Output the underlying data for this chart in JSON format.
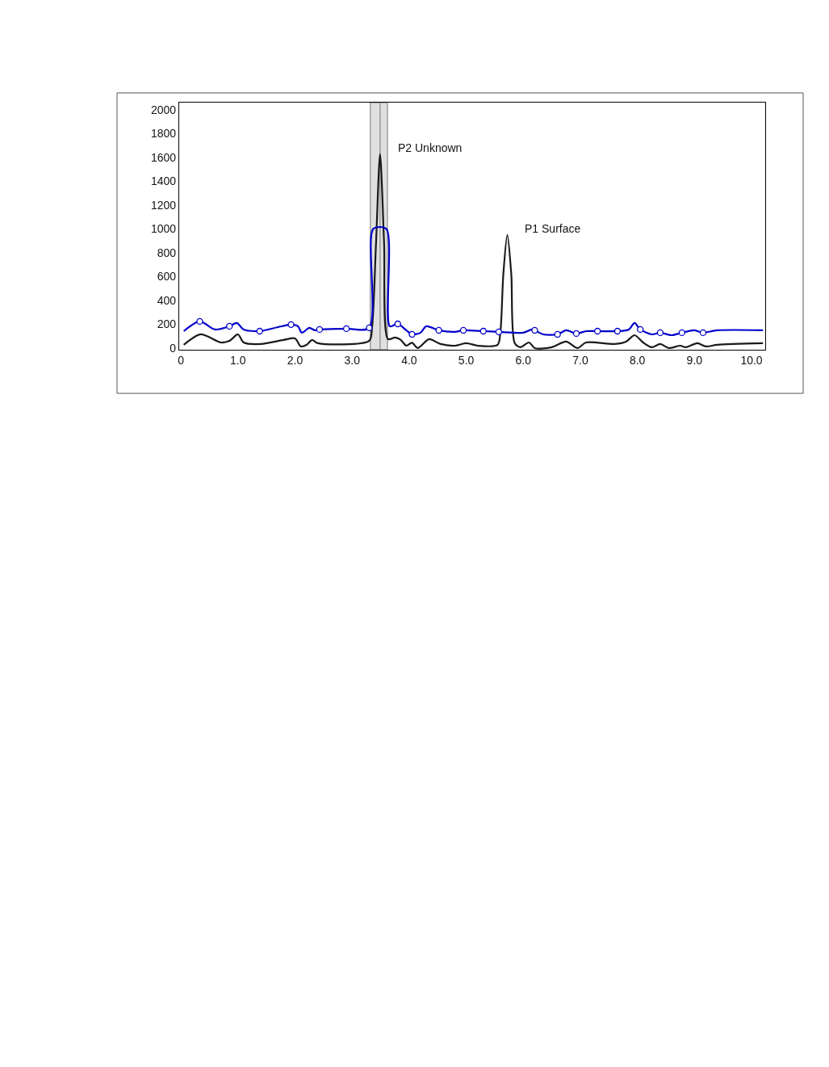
{
  "chart_data": {
    "type": "line",
    "x": [
      0.05,
      0.35,
      0.7,
      0.85,
      1.0,
      1.1,
      1.4,
      1.8,
      2.0,
      2.1,
      2.2,
      2.3,
      2.4,
      3.3,
      3.35,
      3.42,
      3.49,
      3.56,
      3.63,
      3.75,
      3.85,
      3.95,
      4.05,
      4.15,
      4.35,
      4.55,
      4.8,
      5.0,
      5.2,
      5.55,
      5.6,
      5.65,
      5.72,
      5.79,
      5.85,
      5.95,
      6.1,
      6.2,
      6.5,
      6.75,
      6.95,
      7.1,
      7.6,
      7.8,
      7.95,
      8.1,
      8.25,
      8.4,
      8.55,
      8.75,
      8.85,
      9.05,
      9.2,
      9.4,
      10.2
    ],
    "series": [
      {
        "color": "#1a1a1a",
        "marker": "none",
        "values": [
          27,
          115,
          47,
          60,
          115,
          47,
          34,
          68,
          81,
          14,
          27,
          68,
          41,
          61,
          176,
          890,
          1627,
          890,
          75,
          88,
          70,
          20,
          45,
          0,
          75,
          34,
          20,
          41,
          20,
          27,
          142,
          617,
          950,
          617,
          41,
          7,
          47,
          0,
          7,
          54,
          0,
          47,
          34,
          54,
          108,
          47,
          7,
          34,
          0,
          20,
          7,
          41,
          14,
          27,
          41
        ]
      },
      {
        "color": "#0000cc",
        "marker": "none",
        "x": [
          0.05,
          0.33,
          0.6,
          0.85,
          0.98,
          1.1,
          1.38,
          1.7,
          1.93,
          2.05,
          2.12,
          2.25,
          2.35,
          2.43,
          2.9,
          3.3,
          3.37,
          3.6,
          3.66,
          3.8,
          3.95,
          4.05,
          4.2,
          4.3,
          4.52,
          4.8,
          4.95,
          5.3,
          5.57,
          6.0,
          6.15,
          6.2,
          6.35,
          6.6,
          6.75,
          6.93,
          7.1,
          7.3,
          7.65,
          7.85,
          7.95,
          8.05,
          8.25,
          8.4,
          8.6,
          8.78,
          9.0,
          9.15,
          9.4,
          10.2
        ],
        "values": [
          142,
          224,
          156,
          183,
          210,
          156,
          142,
          176,
          197,
          183,
          129,
          170,
          149,
          156,
          163,
          170,
          1000,
          1000,
          183,
          203,
          149,
          115,
          129,
          183,
          149,
          136,
          149,
          142,
          136,
          129,
          156,
          149,
          115,
          115,
          149,
          122,
          142,
          142,
          142,
          156,
          210,
          156,
          115,
          129,
          108,
          129,
          149,
          129,
          149,
          149
        ]
      },
      {
        "type": "scatter",
        "color": "#0000cc",
        "marker": "circle",
        "x": [
          0.33,
          0.85,
          1.38,
          1.93,
          2.43,
          2.9,
          3.3,
          3.8,
          4.05,
          4.52,
          4.95,
          5.3,
          5.57,
          6.2,
          6.6,
          6.93,
          7.3,
          7.65,
          8.05,
          8.4,
          8.78,
          9.15
        ],
        "values": [
          224,
          183,
          142,
          197,
          156,
          163,
          170,
          203,
          115,
          149,
          149,
          142,
          136,
          149,
          115,
          122,
          142,
          142,
          156,
          129,
          129,
          129
        ]
      }
    ],
    "xlim": [
      -0.03,
      10.24
    ],
    "ylim": [
      -14,
      2060
    ],
    "xticks": [
      0,
      {
        "value": 1,
        "label": "1.0"
      },
      {
        "value": 2,
        "label": "2.0"
      },
      {
        "value": 3,
        "label": "3.0"
      },
      {
        "value": 4,
        "label": "4.0"
      },
      {
        "value": 5,
        "label": "5.0"
      },
      {
        "value": 6,
        "label": "6.0"
      },
      {
        "value": 7,
        "label": "7.0"
      },
      {
        "value": 8,
        "label": "8.0"
      },
      {
        "value": 9,
        "label": "9.0"
      },
      {
        "value": 10,
        "label": "10.0"
      }
    ],
    "yticks": [
      0,
      200,
      400,
      600,
      800,
      1000,
      1200,
      1400,
      1600,
      1800,
      2000
    ],
    "bands": [
      {
        "axis": "x",
        "from": 3.32,
        "to": 3.62,
        "color": "#e0e0e0"
      }
    ],
    "ref_lines": [
      {
        "axis": "x",
        "value": 3.49,
        "color": "#999999"
      }
    ],
    "annotations": [
      {
        "text": "P2 Unknown",
        "x": 3.49,
        "y": 1627
      },
      {
        "text": "P1 Surface",
        "x": 5.72,
        "y": 950
      }
    ],
    "grid": false
  }
}
